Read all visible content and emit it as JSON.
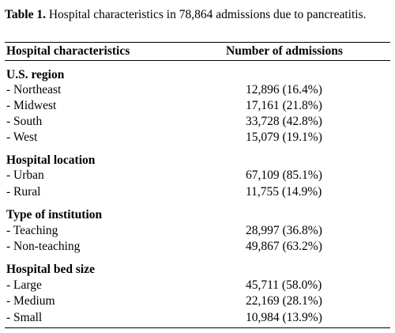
{
  "caption": {
    "label": "Table 1.",
    "text": " Hospital characteristics in 78,864 admissions due to pancreatitis."
  },
  "header": {
    "col1": "Hospital characteristics",
    "col2": "Number of admissions"
  },
  "groups": [
    {
      "title": "U.S. region",
      "rows": [
        {
          "name": "- Northeast",
          "value": "12,896 (16.4%)"
        },
        {
          "name": "- Midwest",
          "value": "17,161 (21.8%)"
        },
        {
          "name": "- South",
          "value": "33,728 (42.8%)"
        },
        {
          "name": "- West",
          "value": "15,079 (19.1%)"
        }
      ]
    },
    {
      "title": "Hospital location",
      "rows": [
        {
          "name": "- Urban",
          "value": "67,109 (85.1%)"
        },
        {
          "name": "- Rural",
          "value": "11,755 (14.9%)"
        }
      ]
    },
    {
      "title": "Type of institution",
      "rows": [
        {
          "name": "- Teaching",
          "value": "28,997 (36.8%)"
        },
        {
          "name": "- Non-teaching",
          "value": "49,867 (63.2%)"
        }
      ]
    },
    {
      "title": "Hospital bed size",
      "rows": [
        {
          "name": "- Large",
          "value": "45,711 (58.0%)"
        },
        {
          "name": "- Medium",
          "value": "22,169 (28.1%)"
        },
        {
          "name": "- Small",
          "value": "10,984 (13.9%)"
        }
      ]
    }
  ]
}
